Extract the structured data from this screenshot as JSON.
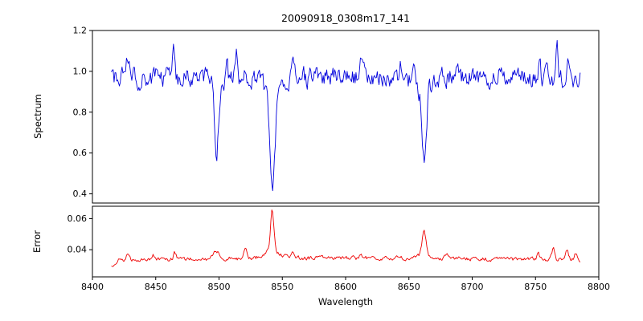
{
  "chart_data": [
    {
      "type": "line",
      "panel": "spectrum",
      "title": "20090918_0308m17_141",
      "ylabel": "Spectrum",
      "xlabel": "",
      "color": "#0000dd",
      "line_width": 0.9,
      "xlim": [
        8400,
        8800
      ],
      "ylim": [
        0.355,
        1.2
      ],
      "yticks": [
        0.4,
        0.6,
        0.8,
        1.0,
        1.2
      ],
      "ytick_labels": [
        "0.4",
        "0.6",
        "0.8",
        "1.0",
        "1.2"
      ],
      "xticks": [
        8400,
        8450,
        8500,
        8550,
        8600,
        8650,
        8700,
        8750,
        8800
      ],
      "xtick_labels": [],
      "show_xtick_labels": false,
      "x_start": 8415,
      "x_end": 8786,
      "sample_step": 0.7,
      "baseline": 0.97,
      "noise_amplitude": 0.042,
      "absorption_lines": [
        {
          "center": 8498.0,
          "depth": 0.3,
          "width": 1.4
        },
        {
          "center": 8498.0,
          "depth": 0.05,
          "width": 4.0
        },
        {
          "center": 8542.1,
          "depth": 0.5,
          "width": 1.9
        },
        {
          "center": 8542.1,
          "depth": 0.09,
          "width": 6.0
        },
        {
          "center": 8662.1,
          "depth": 0.34,
          "width": 1.6
        },
        {
          "center": 8662.1,
          "depth": 0.07,
          "width": 5.0
        }
      ],
      "features": [
        {
          "center": 8428,
          "height": 0.1,
          "width": 0.9
        },
        {
          "center": 8464,
          "height": 0.17,
          "width": 0.9
        },
        {
          "center": 8506,
          "height": 0.09,
          "width": 0.9
        },
        {
          "center": 8514,
          "height": 0.1,
          "width": 0.9
        },
        {
          "center": 8558,
          "height": 0.11,
          "width": 0.9
        },
        {
          "center": 8577,
          "height": 0.06,
          "width": 0.9
        },
        {
          "center": 8612,
          "height": 0.07,
          "width": 0.9
        },
        {
          "center": 8643,
          "height": 0.08,
          "width": 0.9
        },
        {
          "center": 8654,
          "height": 0.12,
          "width": 0.9
        },
        {
          "center": 8688,
          "height": 0.06,
          "width": 0.9
        },
        {
          "center": 8722,
          "height": 0.05,
          "width": 0.9
        },
        {
          "center": 8753,
          "height": 0.06,
          "width": 0.9
        },
        {
          "center": 8767,
          "height": 0.13,
          "width": 0.9
        },
        {
          "center": 8776,
          "height": 0.1,
          "width": 0.9
        }
      ]
    },
    {
      "type": "line",
      "panel": "error",
      "title": "",
      "ylabel": "Error",
      "xlabel": "Wavelength",
      "color": "#ee0000",
      "line_width": 0.9,
      "xlim": [
        8400,
        8800
      ],
      "ylim": [
        0.0225,
        0.068
      ],
      "yticks": [
        0.04,
        0.06
      ],
      "ytick_labels": [
        "0.04",
        "0.06"
      ],
      "xticks": [
        8400,
        8450,
        8500,
        8550,
        8600,
        8650,
        8700,
        8750,
        8800
      ],
      "xtick_labels": [
        "8400",
        "8450",
        "8500",
        "8550",
        "8600",
        "8650",
        "8700",
        "8750",
        "8800"
      ],
      "show_xtick_labels": true,
      "x_start": 8415,
      "x_end": 8786,
      "sample_step": 0.7,
      "baseline": 0.0325,
      "noise_amplitude": 0.0011,
      "absorption_lines": [],
      "features": [
        {
          "center": 8600,
          "height": 0.002,
          "width": 150
        },
        {
          "center": 8414,
          "height": -0.005,
          "width": 2.5
        },
        {
          "center": 8428,
          "height": 0.004,
          "width": 1.0
        },
        {
          "center": 8448,
          "height": 0.003,
          "width": 1.0
        },
        {
          "center": 8465,
          "height": 0.004,
          "width": 1.0
        },
        {
          "center": 8498,
          "height": 0.005,
          "width": 2.5
        },
        {
          "center": 8521,
          "height": 0.006,
          "width": 1.5
        },
        {
          "center": 8542,
          "height": 0.027,
          "width": 1.3
        },
        {
          "center": 8542,
          "height": 0.005,
          "width": 6.0
        },
        {
          "center": 8558,
          "height": 0.004,
          "width": 1.0
        },
        {
          "center": 8612,
          "height": 0.002,
          "width": 1.0
        },
        {
          "center": 8643,
          "height": 0.002,
          "width": 1.0
        },
        {
          "center": 8662,
          "height": 0.015,
          "width": 1.4
        },
        {
          "center": 8662,
          "height": 0.003,
          "width": 5.0
        },
        {
          "center": 8680,
          "height": 0.003,
          "width": 1.0
        },
        {
          "center": 8722,
          "height": 0.002,
          "width": 1.0
        },
        {
          "center": 8752,
          "height": 0.004,
          "width": 1.0
        },
        {
          "center": 8764,
          "height": 0.007,
          "width": 1.1
        },
        {
          "center": 8775,
          "height": 0.006,
          "width": 1.1
        },
        {
          "center": 8782,
          "height": 0.004,
          "width": 1.0
        }
      ]
    }
  ]
}
